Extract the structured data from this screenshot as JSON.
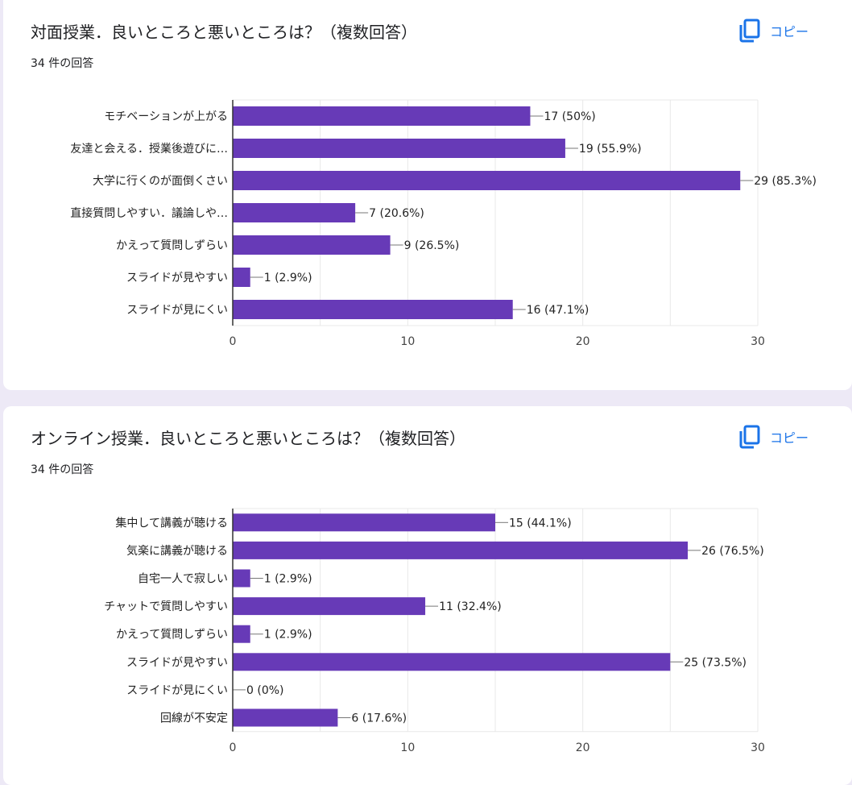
{
  "colors": {
    "bar": "#673ab7",
    "link": "#1a73e8",
    "grid": "#e8e8e8",
    "axis": "#333333"
  },
  "icons": {
    "copy": "copy-icon"
  },
  "questions": [
    {
      "title": "対面授業．良いところと悪いところは？（複数回答）",
      "response_count": "34 件の回答",
      "copy_label": "コピー"
    },
    {
      "title": "オンライン授業．良いところと悪いところは？（複数回答）",
      "response_count": "34 件の回答",
      "copy_label": "コピー"
    }
  ],
  "chart_data": [
    {
      "type": "bar",
      "orientation": "horizontal",
      "categories": [
        "モチベーションが上がる",
        "友達と会える．授業後遊びに…",
        "大学に行くのが面倒くさい",
        "直接質問しやすい．議論しや…",
        "かえって質問しずらい",
        "スライドが見やすい",
        "スライドが見にくい"
      ],
      "values": [
        17,
        19,
        29,
        7,
        9,
        1,
        16
      ],
      "data_labels": [
        "17 (50%)",
        "19 (55.9%)",
        "29 (85.3%)",
        "7 (20.6%)",
        "9 (26.5%)",
        "1 (2.9%)",
        "16 (47.1%)"
      ],
      "xlim": [
        0,
        30
      ],
      "xticks": [
        0,
        10,
        20,
        30
      ],
      "grid": true
    },
    {
      "type": "bar",
      "orientation": "horizontal",
      "categories": [
        "集中して講義が聴ける",
        "気楽に講義が聴ける",
        "自宅一人で寂しい",
        "チャットで質問しやすい",
        "かえって質問しずらい",
        "スライドが見やすい",
        "スライドが見にくい",
        "回線が不安定"
      ],
      "values": [
        15,
        26,
        1,
        11,
        1,
        25,
        0,
        6
      ],
      "data_labels": [
        "15 (44.1%)",
        "26 (76.5%)",
        "1 (2.9%)",
        "11 (32.4%)",
        "1 (2.9%)",
        "25 (73.5%)",
        "0 (0%)",
        "6 (17.6%)"
      ],
      "xlim": [
        0,
        30
      ],
      "xticks": [
        0,
        10,
        20,
        30
      ],
      "grid": true
    }
  ]
}
